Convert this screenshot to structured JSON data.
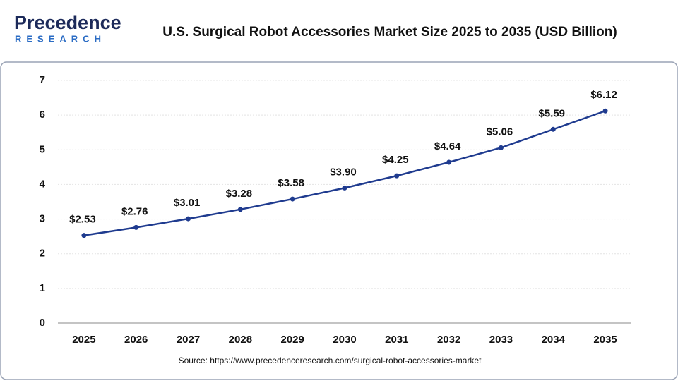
{
  "logo": {
    "name": "Precedence",
    "tagline": "RESEARCH"
  },
  "chart_data": {
    "type": "line",
    "title": "U.S. Surgical Robot Accessories Market Size 2025 to 2035 (USD Billion)",
    "categories": [
      "2025",
      "2026",
      "2027",
      "2028",
      "2029",
      "2030",
      "2031",
      "2032",
      "2033",
      "2034",
      "2035"
    ],
    "values": [
      2.53,
      2.76,
      3.01,
      3.28,
      3.58,
      3.9,
      4.25,
      4.64,
      5.06,
      5.59,
      6.12
    ],
    "value_labels": [
      "$2.53",
      "$2.76",
      "$3.01",
      "$3.28",
      "$3.58",
      "$3.90",
      "$4.25",
      "$4.64",
      "$5.06",
      "$5.59",
      "$6.12"
    ],
    "color": "#1f3b8f",
    "ylim": [
      0,
      7
    ],
    "yticks": [
      0,
      1,
      2,
      3,
      4,
      5,
      6,
      7
    ],
    "grid": true,
    "source": "Source: https://www.precedenceresearch.com/surgical-robot-accessories-market"
  }
}
